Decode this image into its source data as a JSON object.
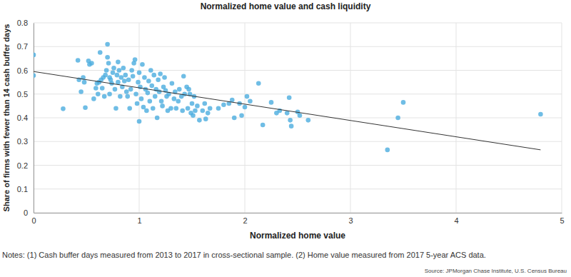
{
  "chart_data": {
    "type": "scatter",
    "title": "Normalized home value and cash liquidity",
    "x_label": "Normalized home value",
    "y_label": "Share of firms with fewer than 14 cash buffer days",
    "notes": "Notes: (1) Cash buffer days measured from 2013 to 2017 in cross-sectional sample. (2) Home value measured from 2017 5-year ACS data.",
    "source": "Source: JPMorgan Chase Institute, U.S. Census Bureau",
    "xlim": [
      0,
      5
    ],
    "ylim": [
      0,
      0.8
    ],
    "xticks": [
      0,
      1,
      2,
      3,
      4,
      5
    ],
    "yticks": [
      0,
      0.1,
      0.2,
      0.3,
      0.4,
      0.5,
      0.6,
      0.7,
      0.8
    ],
    "grid": true,
    "series": [
      {
        "type": "scatter",
        "color": "#4badde",
        "marker": "circle",
        "x": [
          0,
          0,
          0.28,
          0.42,
          0.43,
          0.45,
          0.47,
          0.48,
          0.49,
          0.52,
          0.53,
          0.55,
          0.57,
          0.59,
          0.6,
          0.61,
          0.62,
          0.63,
          0.64,
          0.65,
          0.66,
          0.67,
          0.68,
          0.69,
          0.7,
          0.7,
          0.71,
          0.72,
          0.72,
          0.73,
          0.74,
          0.75,
          0.76,
          0.77,
          0.78,
          0.79,
          0.8,
          0.8,
          0.81,
          0.82,
          0.83,
          0.84,
          0.85,
          0.86,
          0.87,
          0.88,
          0.89,
          0.9,
          0.91,
          0.92,
          0.93,
          0.94,
          0.95,
          0.96,
          0.97,
          0.98,
          0.99,
          1.0,
          1.0,
          1.01,
          1.02,
          1.03,
          1.04,
          1.05,
          1.06,
          1.07,
          1.08,
          1.09,
          1.1,
          1.11,
          1.12,
          1.13,
          1.14,
          1.15,
          1.16,
          1.17,
          1.18,
          1.19,
          1.2,
          1.21,
          1.22,
          1.23,
          1.24,
          1.25,
          1.26,
          1.27,
          1.28,
          1.3,
          1.31,
          1.33,
          1.34,
          1.35,
          1.37,
          1.38,
          1.4,
          1.41,
          1.42,
          1.43,
          1.45,
          1.46,
          1.47,
          1.48,
          1.49,
          1.5,
          1.51,
          1.52,
          1.53,
          1.55,
          1.57,
          1.6,
          1.62,
          1.63,
          1.65,
          1.67,
          1.75,
          1.8,
          1.85,
          1.88,
          1.9,
          1.95,
          1.97,
          2.0,
          2.02,
          2.05,
          2.13,
          2.17,
          2.25,
          2.3,
          2.33,
          2.4,
          2.42,
          2.43,
          2.44,
          2.5,
          2.52,
          2.6,
          3.35,
          3.45,
          3.5,
          4.8
        ],
        "values": [
          0.665,
          0.578,
          0.438,
          0.642,
          0.56,
          0.51,
          0.57,
          0.55,
          0.443,
          0.64,
          0.625,
          0.63,
          0.48,
          0.525,
          0.545,
          0.5,
          0.55,
          0.675,
          0.56,
          0.525,
          0.57,
          0.49,
          0.58,
          0.6,
          0.71,
          0.655,
          0.63,
          0.57,
          0.5,
          0.56,
          0.545,
          0.59,
          0.61,
          0.52,
          0.44,
          0.58,
          0.635,
          0.55,
          0.6,
          0.49,
          0.57,
          0.53,
          0.61,
          0.555,
          0.58,
          0.51,
          0.49,
          0.56,
          0.44,
          0.52,
          0.6,
          0.575,
          0.63,
          0.645,
          0.5,
          0.46,
          0.55,
          0.385,
          0.59,
          0.53,
          0.48,
          0.625,
          0.445,
          0.57,
          0.52,
          0.43,
          0.505,
          0.555,
          0.47,
          0.6,
          0.535,
          0.44,
          0.58,
          0.49,
          0.52,
          0.4,
          0.56,
          0.51,
          0.585,
          0.47,
          0.45,
          0.53,
          0.57,
          0.515,
          0.49,
          0.43,
          0.5,
          0.44,
          0.545,
          0.48,
          0.51,
          0.44,
          0.47,
          0.52,
          0.49,
          0.43,
          0.575,
          0.5,
          0.53,
          0.44,
          0.52,
          0.5,
          0.42,
          0.46,
          0.41,
          0.49,
          0.43,
          0.45,
          0.39,
          0.43,
          0.46,
          0.395,
          0.42,
          0.44,
          0.44,
          0.455,
          0.46,
          0.475,
          0.4,
          0.46,
          0.41,
          0.445,
          0.49,
          0.47,
          0.545,
          0.37,
          0.465,
          0.42,
          0.43,
          0.42,
          0.485,
          0.39,
          0.365,
          0.425,
          0.41,
          0.39,
          0.265,
          0.4,
          0.465,
          0.415
        ]
      },
      {
        "type": "line",
        "color": "#333333",
        "line_style": "solid",
        "x": [
          0,
          4.8
        ],
        "values": [
          0.595,
          0.265
        ]
      }
    ]
  }
}
